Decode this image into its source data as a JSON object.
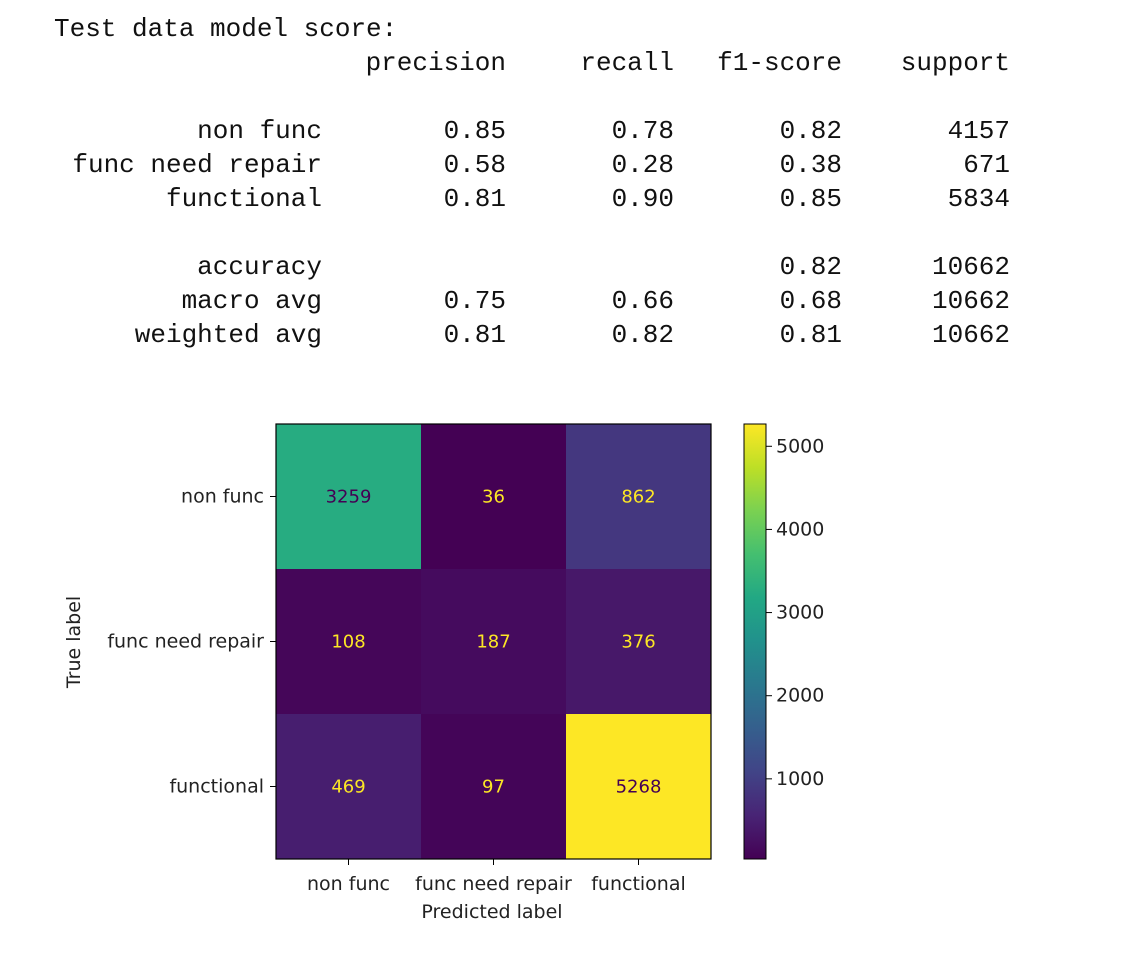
{
  "report": {
    "title": "Test data model score:",
    "columns": [
      "precision",
      "recall",
      "f1-score",
      "support"
    ],
    "rows": [
      {
        "label": "non func",
        "precision": "0.85",
        "recall": "0.78",
        "f1": "0.82",
        "support": "4157"
      },
      {
        "label": "func need repair",
        "precision": "0.58",
        "recall": "0.28",
        "f1": "0.38",
        "support": "671"
      },
      {
        "label": "functional",
        "precision": "0.81",
        "recall": "0.90",
        "f1": "0.85",
        "support": "5834"
      }
    ],
    "summary": [
      {
        "label": "accuracy",
        "precision": "",
        "recall": "",
        "f1": "0.82",
        "support": "10662"
      },
      {
        "label": "macro avg",
        "precision": "0.75",
        "recall": "0.66",
        "f1": "0.68",
        "support": "10662"
      },
      {
        "label": "weighted avg",
        "precision": "0.81",
        "recall": "0.82",
        "f1": "0.81",
        "support": "10662"
      }
    ]
  },
  "chart_data": {
    "type": "heatmap",
    "title": "",
    "xlabel": "Predicted label",
    "ylabel": "True label",
    "x_categories": [
      "non func",
      "func need repair",
      "functional"
    ],
    "y_categories": [
      "non func",
      "func need repair",
      "functional"
    ],
    "values": [
      [
        3259,
        36,
        862
      ],
      [
        108,
        187,
        376
      ],
      [
        469,
        97,
        5268
      ]
    ],
    "colormap": "viridis",
    "colorbar": {
      "min": 36,
      "max": 5268,
      "ticks": [
        1000,
        2000,
        3000,
        4000,
        5000
      ]
    },
    "text_colors": {
      "dark_cell": "#fde725",
      "light_cell": "#440154"
    }
  }
}
